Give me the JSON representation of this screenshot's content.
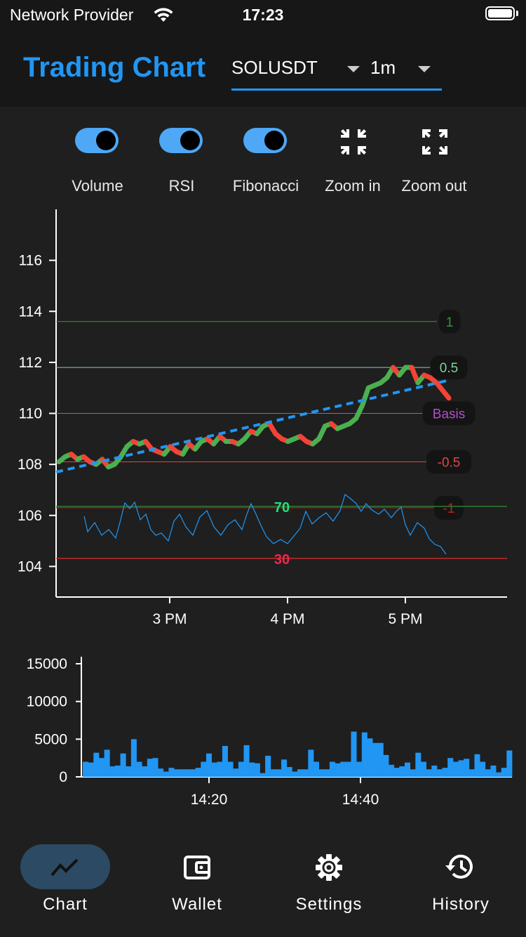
{
  "status": {
    "provider": "Network Provider",
    "time": "17:23"
  },
  "header": {
    "title": "Trading Chart",
    "symbol": "SOLUSDT",
    "interval": "1m"
  },
  "controls": [
    {
      "label": "Volume",
      "type": "toggle",
      "on": true
    },
    {
      "label": "RSI",
      "type": "toggle",
      "on": true
    },
    {
      "label": "Fibonacci",
      "type": "toggle",
      "on": true
    },
    {
      "label": "Zoom in",
      "type": "button",
      "icon": "zoom-in-icon"
    },
    {
      "label": "Zoom out",
      "type": "button",
      "icon": "zoom-out-icon"
    }
  ],
  "chart_data": [
    {
      "type": "line",
      "title": "",
      "x_ticks": [
        "3 PM",
        "4 PM",
        "5 PM"
      ],
      "y_ticks": [
        "104",
        "106",
        "108",
        "110",
        "112",
        "114",
        "116"
      ],
      "ylim": [
        102.8,
        118
      ],
      "fibonacci_levels": [
        {
          "label": "1",
          "value": 113.6,
          "color": "#2e9b3c"
        },
        {
          "label": "0.5",
          "value": 111.8,
          "color": "#7ed39a"
        },
        {
          "label": "Basis",
          "value": 110.0,
          "color": "#b04fc8"
        },
        {
          "label": "-0.5",
          "value": 108.1,
          "color": "#e04545"
        },
        {
          "label": "-1",
          "value": 106.3,
          "color": "#c81e1e"
        }
      ],
      "rsi_levels": [
        {
          "label": "70",
          "color": "#21e07a"
        },
        {
          "label": "30",
          "color": "#f0264e"
        }
      ],
      "trend_line": {
        "start": 107.7,
        "end": 111.3
      },
      "series": [
        {
          "values": [
            108.1,
            108.3,
            108.4,
            108.2,
            108.3,
            108.1,
            108.0,
            108.2,
            107.9,
            108.0,
            108.3,
            108.7,
            108.9,
            108.8,
            108.9,
            108.6,
            108.5,
            108.4,
            108.7,
            108.5,
            108.4,
            108.8,
            108.6,
            108.9,
            109.0,
            108.8,
            109.1,
            108.9,
            108.9,
            108.8,
            109.0,
            109.3,
            109.2,
            109.5,
            109.6,
            109.2,
            109.0,
            108.9,
            109.0,
            109.1,
            108.9,
            108.8,
            109.0,
            109.5,
            109.6,
            109.4,
            109.5,
            109.6,
            109.8,
            110.3,
            111.0,
            111.1,
            111.2,
            111.4,
            111.8,
            111.5,
            111.8,
            111.8,
            111.2,
            111.5,
            111.4,
            111.2,
            110.9,
            110.6
          ]
        }
      ]
    },
    {
      "type": "bar",
      "x_ticks": [
        "14:20",
        "14:40"
      ],
      "y_ticks": [
        "0",
        "5000",
        "10000",
        "15000"
      ],
      "ylim": [
        0,
        15000
      ],
      "values": [
        2000,
        1900,
        3200,
        2500,
        3600,
        1400,
        1500,
        3100,
        1400,
        5000,
        2000,
        1400,
        2400,
        2500,
        1100,
        700,
        1200,
        1000,
        1000,
        1000,
        1000,
        1200,
        2000,
        3100,
        1900,
        2000,
        4100,
        2000,
        1100,
        2000,
        4200,
        1900,
        1800,
        500,
        2800,
        1000,
        1000,
        2300,
        1300,
        700,
        1000,
        1000,
        3600,
        2000,
        1000,
        1000,
        2000,
        1800,
        2000,
        2000,
        6000,
        2000,
        5900,
        5100,
        4500,
        4500,
        2900,
        1600,
        1200,
        1400,
        1900,
        1000,
        3200,
        2000,
        1000,
        1500,
        1000,
        1200,
        2500,
        2000,
        2200,
        2400,
        1000,
        3000,
        2000,
        1000,
        1500,
        600,
        1200,
        3500
      ]
    }
  ],
  "tabs": [
    {
      "label": "Chart",
      "icon": "chart-line-icon",
      "active": true
    },
    {
      "label": "Wallet",
      "icon": "wallet-icon",
      "active": false
    },
    {
      "label": "Settings",
      "icon": "gear-icon",
      "active": false
    },
    {
      "label": "History",
      "icon": "history-icon",
      "active": false
    }
  ]
}
